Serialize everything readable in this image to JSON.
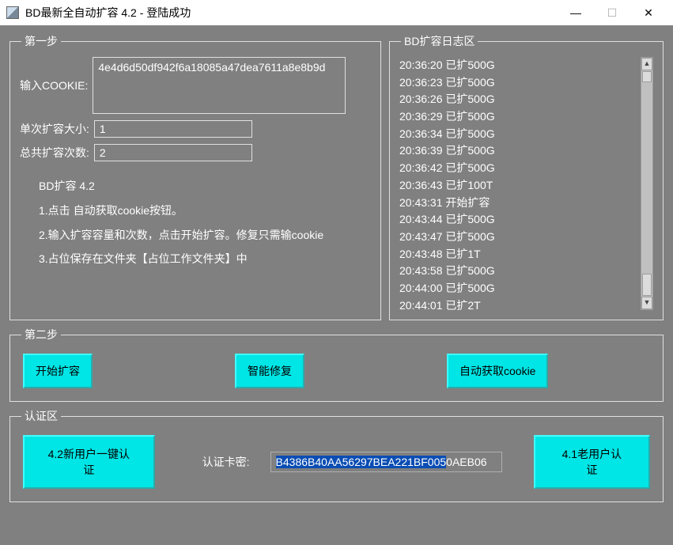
{
  "window": {
    "title": "BD最新全自动扩容 4.2 - 登陆成功"
  },
  "step1": {
    "legend": "第一步",
    "cookie_label": "输入COOKIE:",
    "cookie_value": "4e4d6d50df942f6a18085a47dea7611a8e8b9d",
    "size_label": "单次扩容大小:",
    "size_value": "1",
    "count_label": "总共扩容次数:",
    "count_value": "2",
    "instr_title": "BD扩容 4.2",
    "instr_1": "1.点击 自动获取cookie按钮。",
    "instr_2": "2.输入扩容容量和次数，点击开始扩容。修复只需输cookie",
    "instr_3": "3.占位保存在文件夹【占位工作文件夹】中"
  },
  "log": {
    "legend": "BD扩容日志区",
    "lines": [
      "20:36:20 已扩500G",
      "20:36:23 已扩500G",
      "20:36:26 已扩500G",
      "20:36:29 已扩500G",
      "20:36:34 已扩500G",
      "20:36:39 已扩500G",
      "20:36:42 已扩500G",
      "20:36:43 已扩100T",
      "20:43:31 开始扩容",
      "20:43:44 已扩500G",
      "20:43:47 已扩500G",
      "20:43:48 已扩1T",
      "20:43:58 已扩500G",
      "20:44:00 已扩500G",
      "20:44:01 已扩2T"
    ]
  },
  "step2": {
    "legend": "第二步",
    "start_label": "开始扩容",
    "repair_label": "智能修复",
    "getcookie_label": "自动获取cookie"
  },
  "auth": {
    "legend": "认证区",
    "new_user_label": "4.2新用户一键认证",
    "key_label": "认证卡密:",
    "key_selected": "B4386B40AA56297BEA221BF005",
    "key_rest": "0AEB06",
    "old_user_label": "4.1老用户认证"
  },
  "colors": {
    "window_bg": "#808080",
    "titlebar_bg": "#ffffff",
    "button_cyan": "#00e5e5",
    "text_white": "#ffffff",
    "selection_bg": "#0a4db3"
  }
}
